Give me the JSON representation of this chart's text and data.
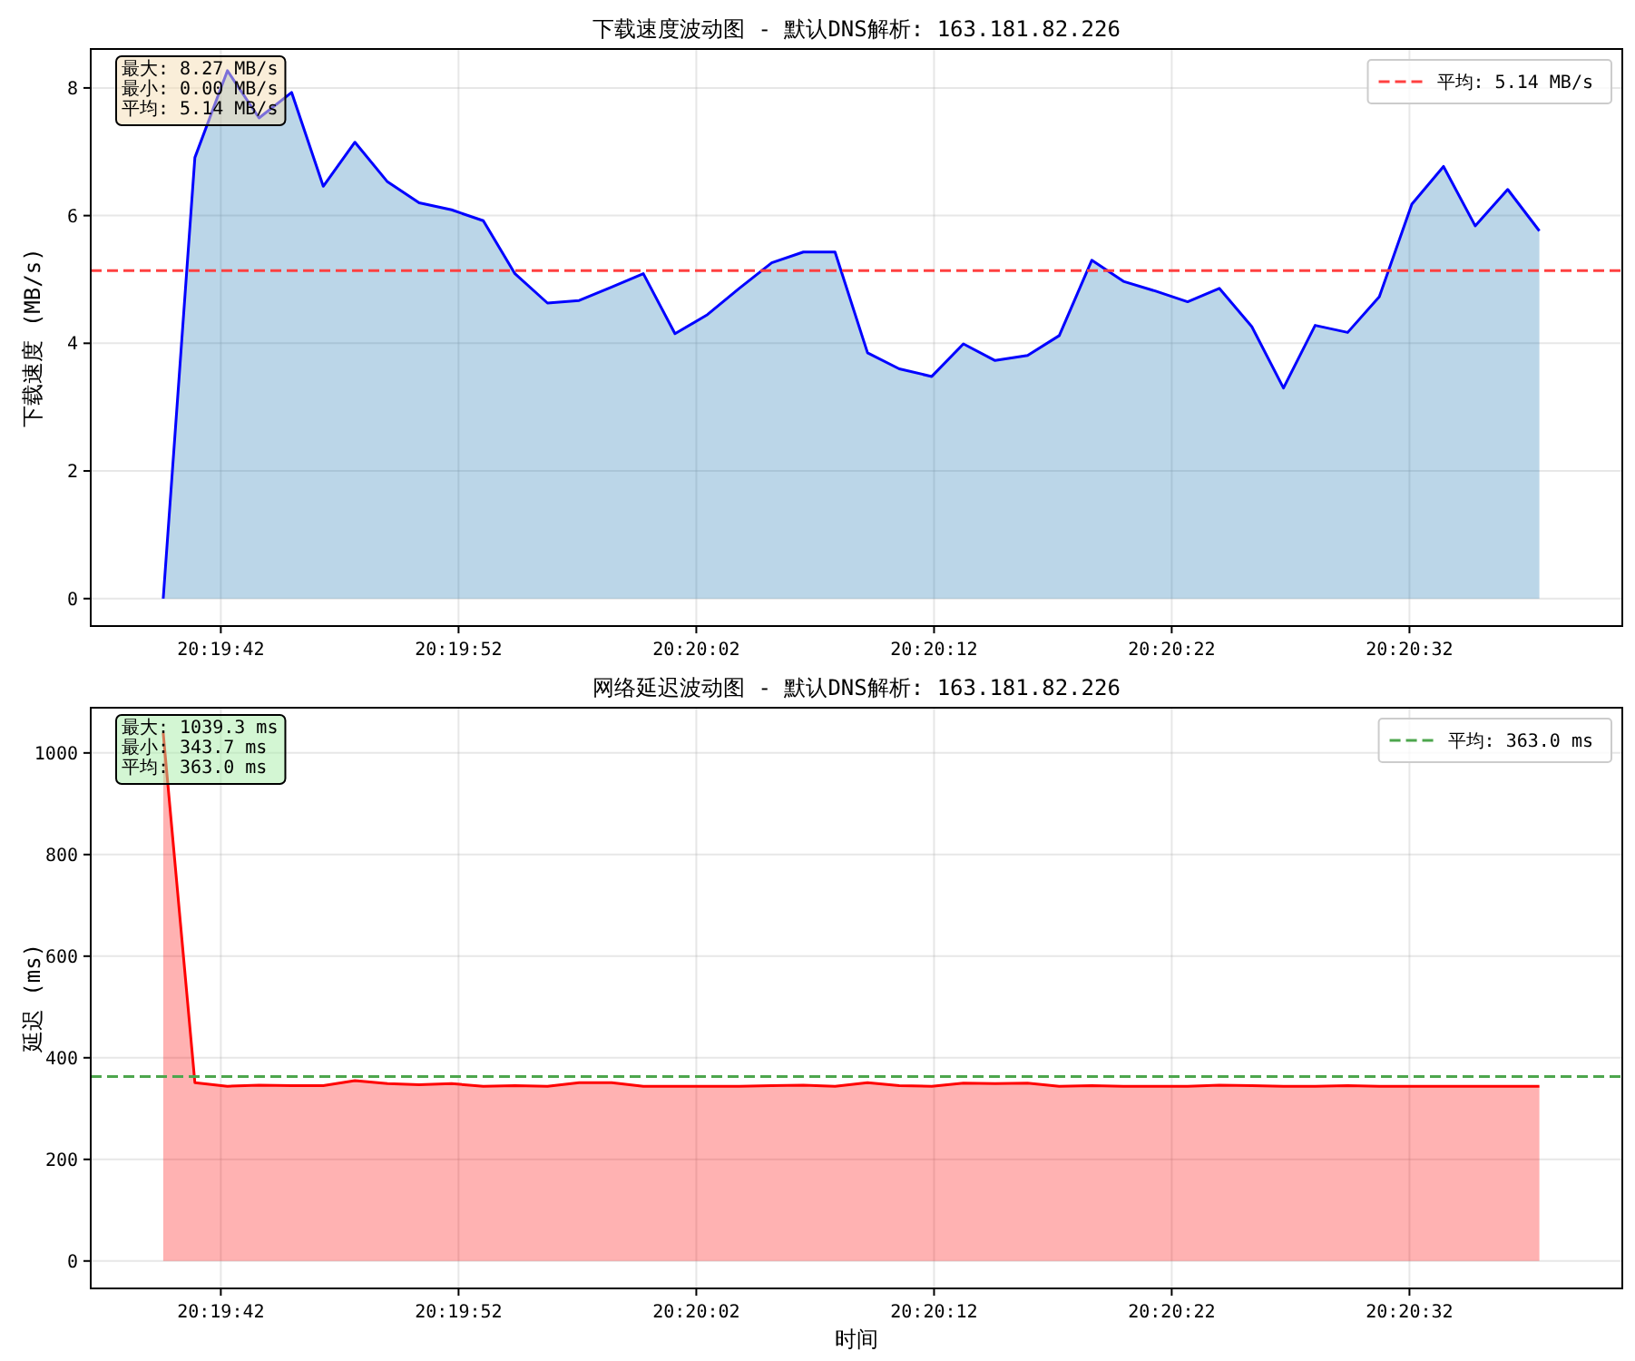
{
  "chart_data": [
    {
      "type": "area",
      "title": "下载速度波动图 - 默认DNS解析: 163.181.82.226",
      "ylabel": "下载速度 (MB/s)",
      "annotations": [
        "最大: 8.27 MB/s",
        "最小: 0.00 MB/s",
        "平均: 5.14 MB/s"
      ],
      "x": [
        20.32766,
        20.32803,
        20.32841,
        20.32878,
        20.32916,
        20.32953,
        20.3299,
        20.33028,
        20.33065,
        20.33103,
        20.3314,
        20.33177,
        20.33215,
        20.33252,
        20.3329,
        20.33327,
        20.33364,
        20.33402,
        20.33439,
        20.33477,
        20.33514,
        20.33551,
        20.33589,
        20.33626,
        20.33664,
        20.33701,
        20.33738,
        20.33776,
        20.33813,
        20.33851,
        20.33888,
        20.33925,
        20.33963,
        20.34,
        20.34038,
        20.34075,
        20.34112,
        20.3415,
        20.34187,
        20.34225,
        20.34262,
        20.34299,
        20.34337,
        20.34374
      ],
      "series": [
        {
          "color": "#0000ff",
          "values": [
            0,
            6.91,
            8.27,
            7.53,
            7.93,
            6.46,
            7.15,
            6.53,
            6.2,
            6.09,
            5.92,
            5.09,
            4.63,
            4.67,
            4.88,
            5.09,
            4.15,
            4.45,
            4.86,
            5.26,
            5.43,
            5.43,
            3.85,
            3.6,
            3.48,
            3.99,
            3.73,
            3.81,
            4.12,
            5.3,
            4.97,
            4.82,
            4.65,
            4.86,
            4.26,
            3.3,
            4.28,
            4.17,
            4.73,
            6.18,
            6.77,
            5.84,
            6.41,
            5.76
          ]
        }
      ],
      "xlim": [
        20.326813,
        20.344709
      ],
      "xticks": [
        {
          "value": 20.328333,
          "label": "20:19:42"
        },
        {
          "value": 20.331111,
          "label": "20:19:52"
        },
        {
          "value": 20.333889,
          "label": "20:20:02"
        },
        {
          "value": 20.336667,
          "label": "20:20:12"
        },
        {
          "value": 20.339444,
          "label": "20:20:22"
        },
        {
          "value": 20.342222,
          "label": "20:20:32"
        }
      ],
      "ylim": [
        -0.43,
        8.61
      ],
      "yticks": [
        0,
        2,
        4,
        6,
        8
      ],
      "ref_lines": [
        {
          "axis": "y",
          "value": 5.14,
          "label": "平均: 5.14 MB/s",
          "color": "#ff4040",
          "line_style": "dashed"
        }
      ],
      "grid": true,
      "legend": "top right"
    },
    {
      "type": "area",
      "title": "网络延迟波动图 - 默认DNS解析: 163.181.82.226",
      "ylabel": "延迟 (ms)",
      "xlabel": "时间",
      "annotations": [
        "最大: 1039.3 ms",
        "最小: 343.7 ms",
        "平均: 363.0 ms"
      ],
      "x": [
        20.32766,
        20.32803,
        20.32841,
        20.32878,
        20.32916,
        20.32953,
        20.3299,
        20.33028,
        20.33065,
        20.33103,
        20.3314,
        20.33177,
        20.33215,
        20.33252,
        20.3329,
        20.33327,
        20.33364,
        20.33402,
        20.33439,
        20.33477,
        20.33514,
        20.33551,
        20.33589,
        20.33626,
        20.33664,
        20.33701,
        20.33738,
        20.33776,
        20.33813,
        20.33851,
        20.33888,
        20.33925,
        20.33963,
        20.34,
        20.34038,
        20.34075,
        20.34112,
        20.3415,
        20.34187,
        20.34225,
        20.34262,
        20.34299,
        20.34337,
        20.34374
      ],
      "series": [
        {
          "color": "#ff0000",
          "values": [
            1039.3,
            351,
            344,
            346,
            345,
            345,
            355,
            349,
            347,
            349,
            344,
            345,
            343.7,
            351,
            351,
            344,
            344,
            344,
            344,
            345,
            346,
            344,
            351,
            345,
            344,
            350,
            349,
            350,
            344,
            345,
            344,
            344,
            344,
            346,
            345,
            344,
            344,
            345,
            344,
            344,
            344,
            344,
            344,
            344
          ]
        }
      ],
      "xlim": [
        20.326813,
        20.344709
      ],
      "xticks": [
        {
          "value": 20.328333,
          "label": "20:19:42"
        },
        {
          "value": 20.331111,
          "label": "20:19:52"
        },
        {
          "value": 20.333889,
          "label": "20:20:02"
        },
        {
          "value": 20.336667,
          "label": "20:20:12"
        },
        {
          "value": 20.339444,
          "label": "20:20:22"
        },
        {
          "value": 20.342222,
          "label": "20:20:32"
        }
      ],
      "ylim": [
        -54,
        1089
      ],
      "yticks": [
        0,
        200,
        400,
        600,
        800,
        1000
      ],
      "ref_lines": [
        {
          "axis": "y",
          "value": 363.0,
          "label": "平均: 363.0 ms",
          "color": "#4da64d",
          "line_style": "dashed"
        }
      ],
      "grid": true,
      "legend": "top right"
    }
  ]
}
